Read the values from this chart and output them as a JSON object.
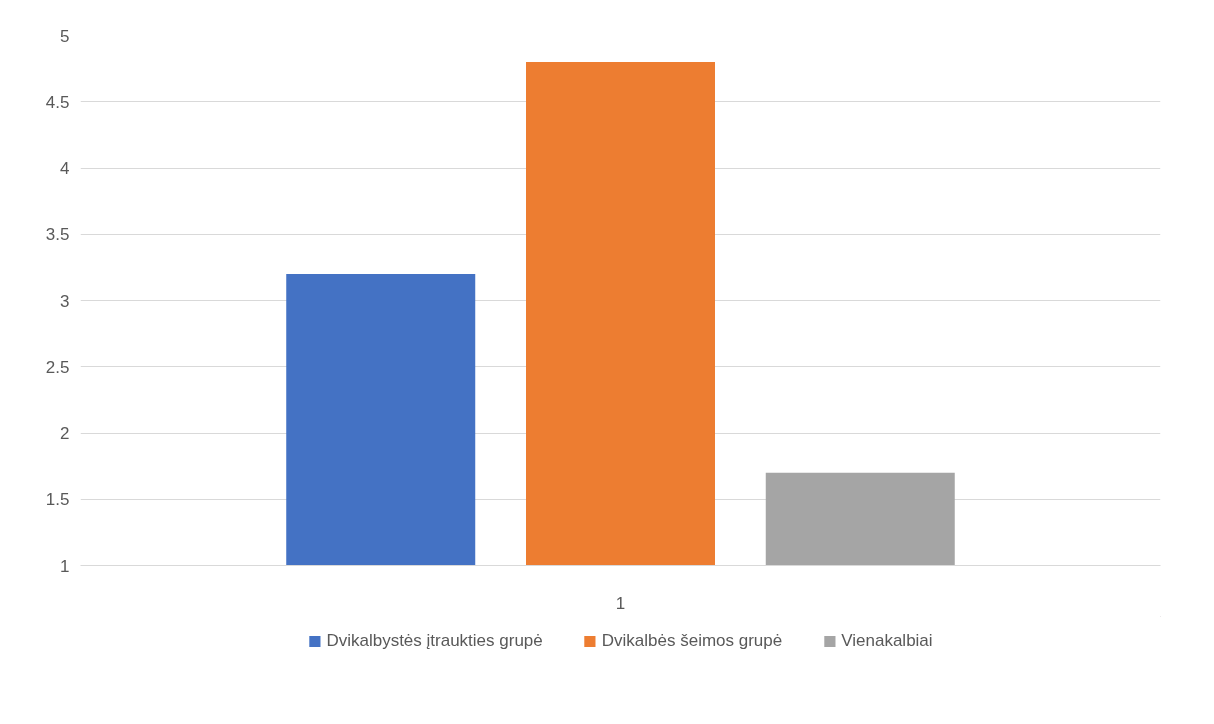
{
  "chart_data": {
    "type": "bar",
    "categories": [
      "1"
    ],
    "series": [
      {
        "name": "Dvikalbystės įtraukties grupė",
        "color": "#4472c4",
        "values": [
          3.2
        ]
      },
      {
        "name": "Dvikalbės šeimos grupė",
        "color": "#ed7d31",
        "values": [
          4.8
        ]
      },
      {
        "name": "Vienakalbiai",
        "color": "#a5a5a5",
        "values": [
          1.7
        ]
      }
    ],
    "ylim": [
      1,
      5
    ],
    "yticks": [
      1,
      1.5,
      2,
      2.5,
      3,
      3.5,
      4,
      4.5,
      5
    ],
    "grid": "y",
    "legend": "bottom"
  }
}
